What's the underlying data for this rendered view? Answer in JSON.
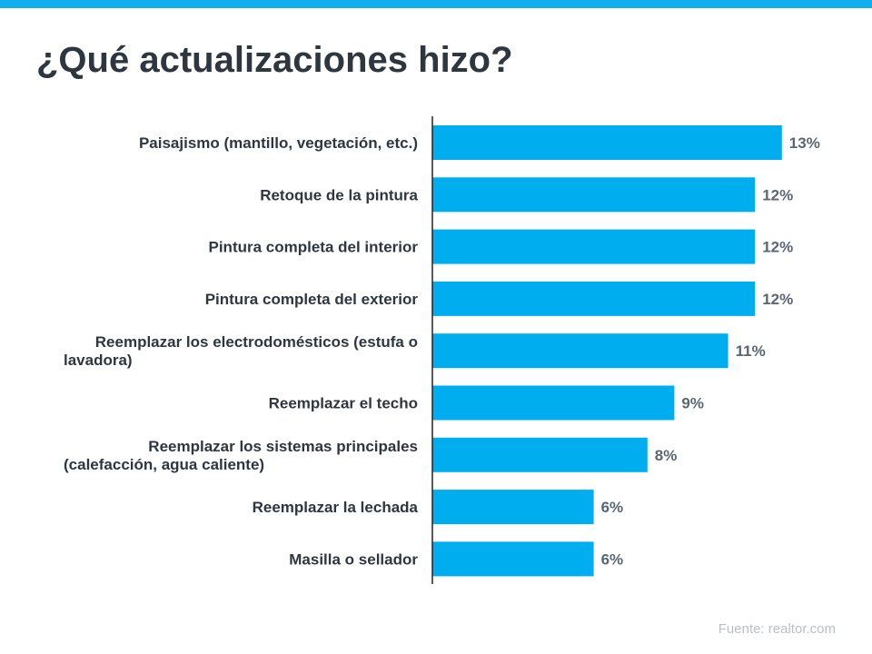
{
  "colors": {
    "accent": "#12aeef",
    "bar": "#00aeef",
    "title": "#2e3640",
    "source": "#b8c0c8"
  },
  "title": "¿Qué actualizaciones hizo?",
  "source": "Fuente:  realtor.com",
  "chart_data": {
    "type": "bar",
    "orientation": "horizontal",
    "categories": [
      [
        "Paisajismo (mantillo, vegetación, etc.)"
      ],
      [
        "Retoque de la pintura"
      ],
      [
        "Pintura completa del interior"
      ],
      [
        "Pintura completa del exterior"
      ],
      [
        "Reemplazar los electrodomésticos (estufa o",
        "lavadora)"
      ],
      [
        "Reemplazar el techo"
      ],
      [
        "Reemplazar los sistemas principales",
        "(calefacción, agua caliente)"
      ],
      [
        "Reemplazar la lechada"
      ],
      [
        "Masilla o sellador"
      ]
    ],
    "values": [
      13,
      12,
      12,
      12,
      11,
      9,
      8,
      6,
      6
    ],
    "labels": [
      "13%",
      "12%",
      "12%",
      "12%",
      "11%",
      "9%",
      "8%",
      "6%",
      "6%"
    ],
    "xlim": [
      0,
      13
    ],
    "grid": false
  }
}
